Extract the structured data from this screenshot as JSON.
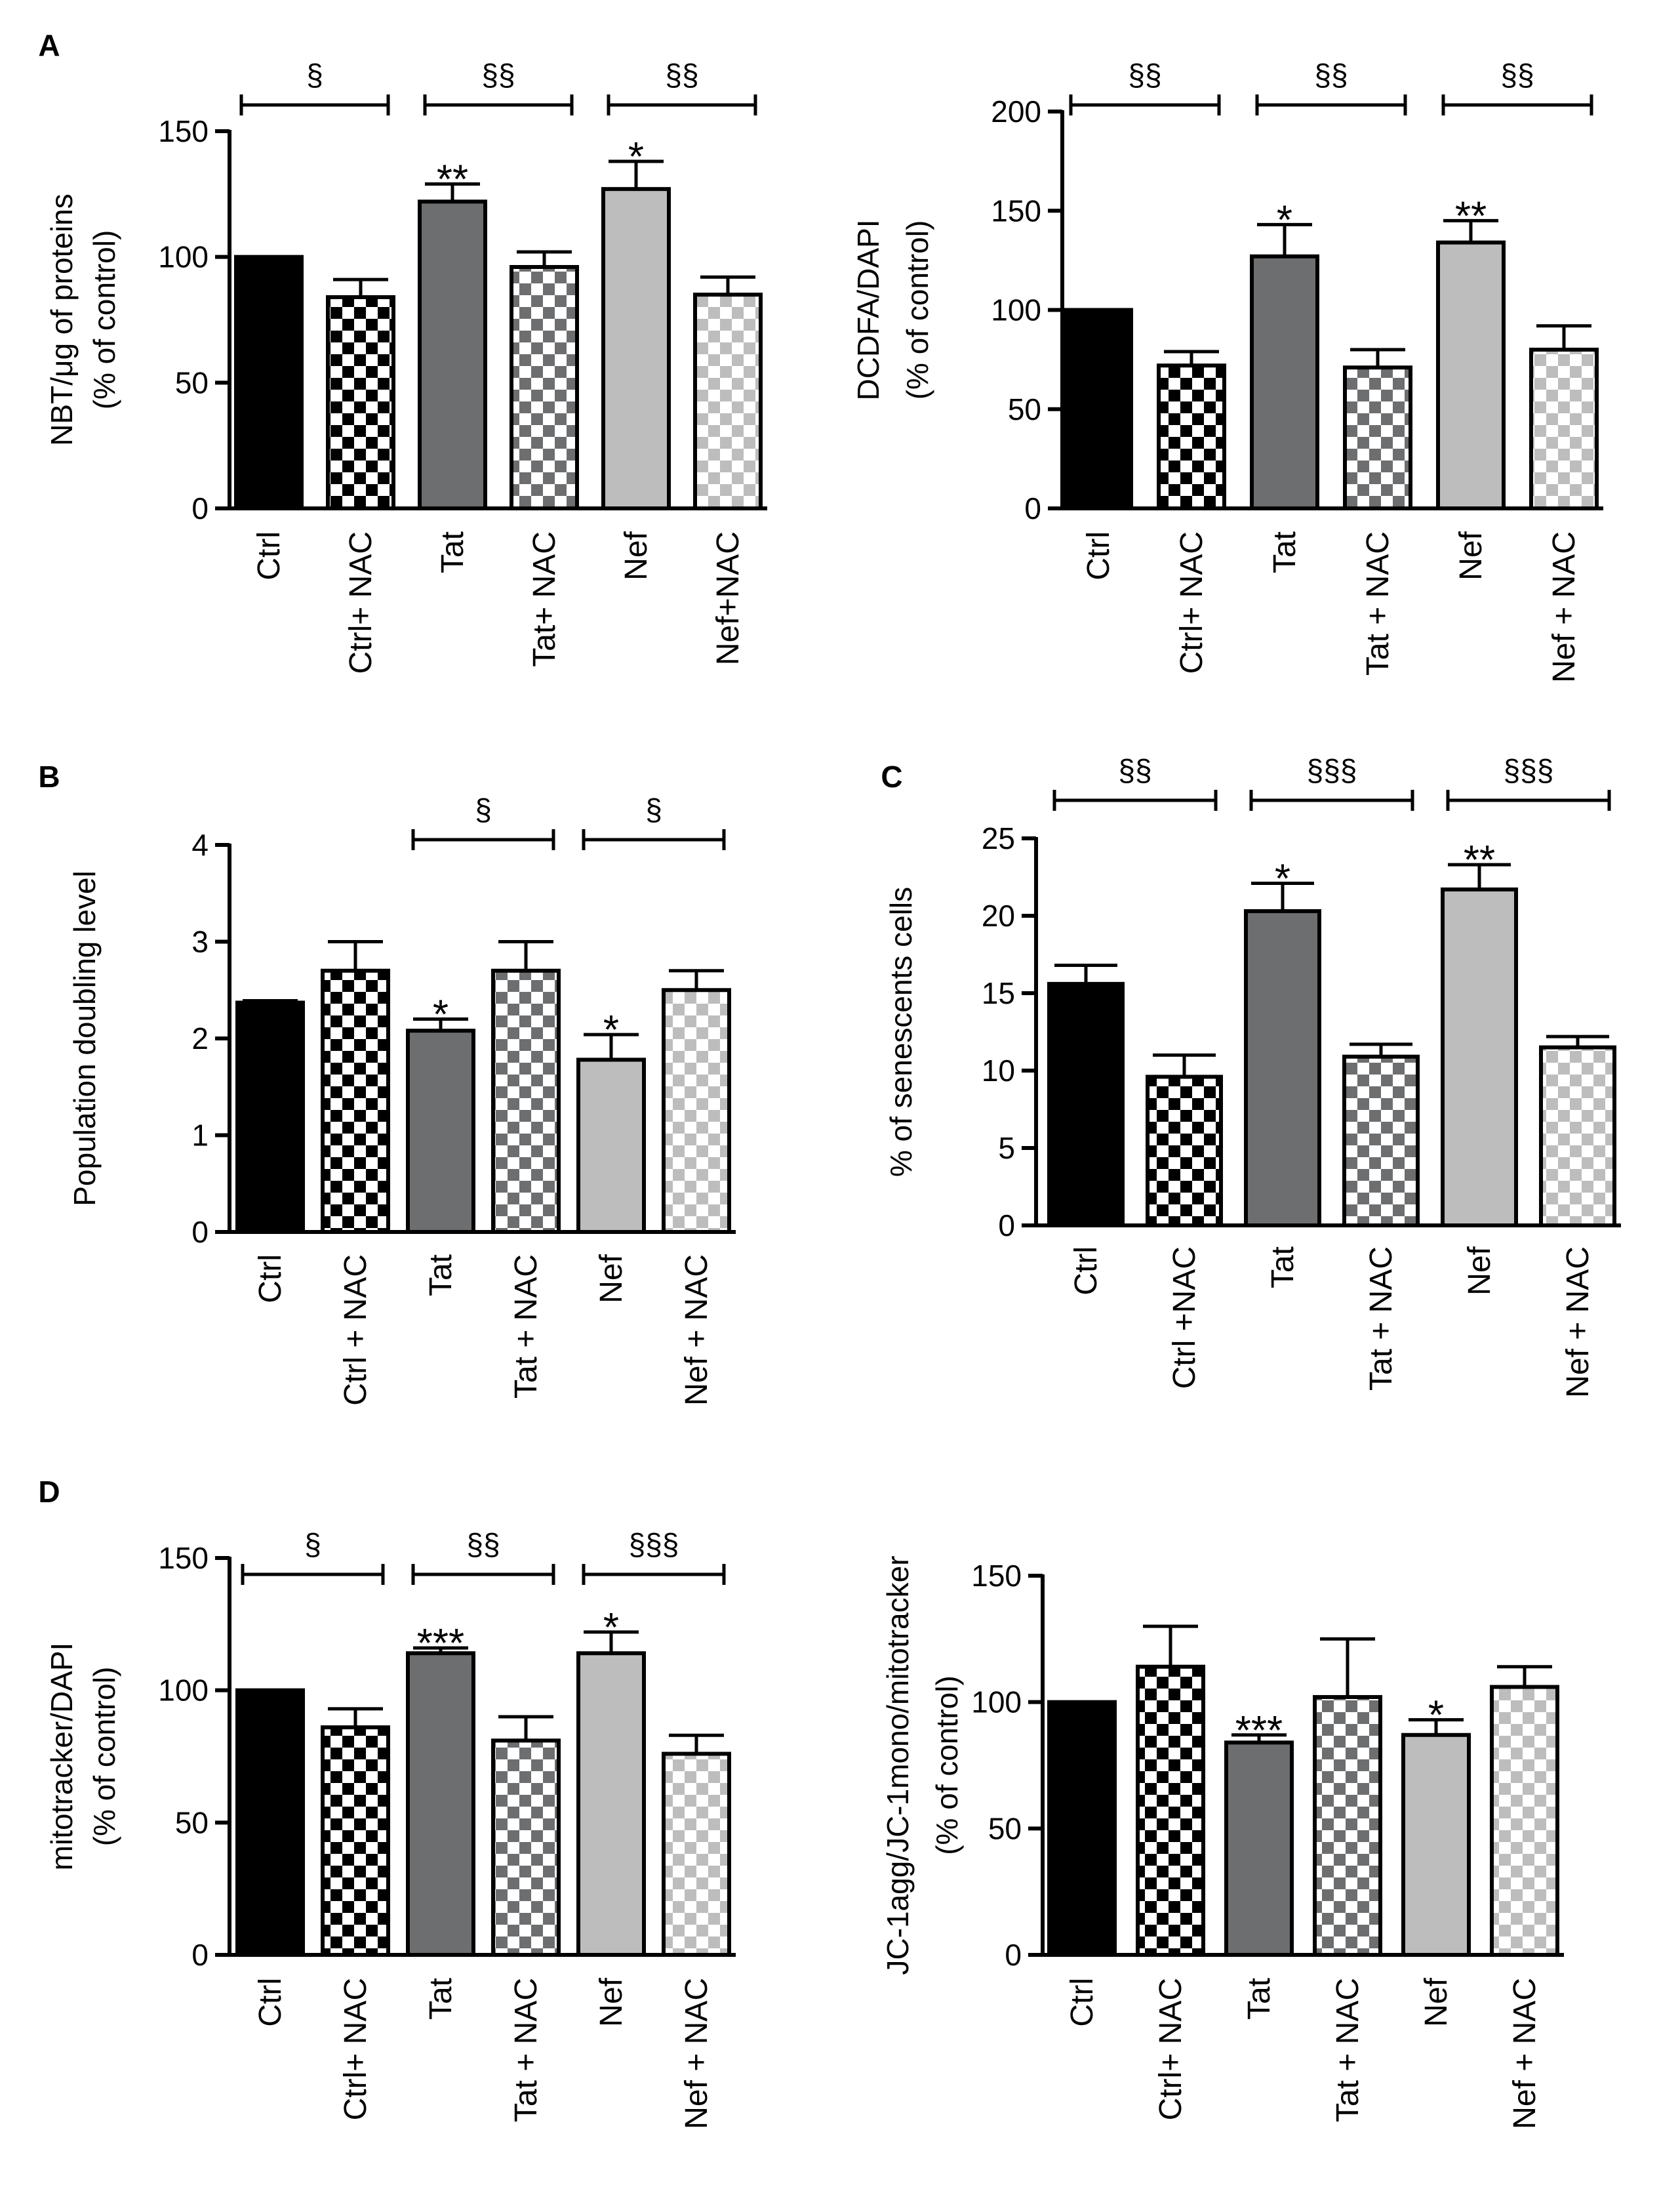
{
  "colors": {
    "ctrl": "#000000",
    "tat": "#6d6e70",
    "nef": "#bdbdbd",
    "pattern_light": "#ffffff",
    "axis": "#000000"
  },
  "panels": [
    {
      "letter": "A",
      "chart_data": {
        "type": "bar",
        "ylabel_lines": [
          "NBT/μg of proteins",
          "(% of control)"
        ],
        "ylim": [
          0,
          150
        ],
        "yticks": [
          0,
          50,
          100,
          150
        ],
        "categories": [
          "Ctrl",
          "Ctrl+ NAC",
          "Tat",
          "Tat+ NAC",
          "Nef",
          "Nef+NAC"
        ],
        "values": [
          100,
          84,
          122,
          96,
          127,
          85
        ],
        "errors": [
          0,
          7,
          7,
          6,
          11,
          7
        ],
        "stars": [
          "",
          "",
          "**",
          "",
          "*",
          ""
        ],
        "brackets": [
          {
            "from": 0,
            "to": 1,
            "label": "§"
          },
          {
            "from": 2,
            "to": 3,
            "label": "§§"
          },
          {
            "from": 4,
            "to": 5,
            "label": "§§"
          }
        ]
      }
    },
    {
      "letter": "",
      "chart_data": {
        "type": "bar",
        "ylabel_lines": [
          "DCDFA/DAPI",
          "(% of control)"
        ],
        "ylim": [
          0,
          200
        ],
        "yticks": [
          0,
          50,
          100,
          150,
          200
        ],
        "categories": [
          "Ctrl",
          "Ctrl+ NAC",
          "Tat",
          "Tat + NAC",
          "Nef",
          "Nef + NAC"
        ],
        "values": [
          100,
          72,
          127,
          71,
          134,
          80
        ],
        "errors": [
          0,
          7,
          16,
          9,
          11,
          12
        ],
        "stars": [
          "",
          "",
          "*",
          "",
          "**",
          ""
        ],
        "brackets": [
          {
            "from": 0,
            "to": 1,
            "label": "§§"
          },
          {
            "from": 2,
            "to": 3,
            "label": "§§"
          },
          {
            "from": 4,
            "to": 5,
            "label": "§§"
          }
        ]
      }
    },
    {
      "letter": "B",
      "chart_data": {
        "type": "bar",
        "ylabel_lines": [
          "Population doubling level"
        ],
        "ylim": [
          0,
          4
        ],
        "yticks": [
          0,
          1,
          2,
          3,
          4
        ],
        "categories": [
          "Ctrl",
          "Ctrl + NAC",
          "Tat",
          "Tat + NAC",
          "Nef",
          "Nef + NAC"
        ],
        "values": [
          2.37,
          2.7,
          2.08,
          2.7,
          1.78,
          2.5
        ],
        "errors": [
          0.02,
          0.3,
          0.12,
          0.3,
          0.26,
          0.2
        ],
        "stars": [
          "",
          "",
          "*",
          "",
          "*",
          ""
        ],
        "brackets": [
          {
            "from": 2,
            "to": 3,
            "label": "§"
          },
          {
            "from": 4,
            "to": 5,
            "label": "§"
          }
        ]
      }
    },
    {
      "letter": "C",
      "chart_data": {
        "type": "bar",
        "ylabel_lines": [
          "% of senescents cells"
        ],
        "ylim": [
          0,
          25
        ],
        "yticks": [
          0,
          5,
          10,
          15,
          20,
          25
        ],
        "categories": [
          "Ctrl",
          "Ctrl +NAC",
          "Tat",
          "Tat + NAC",
          "Nef",
          "Nef + NAC"
        ],
        "values": [
          15.6,
          9.6,
          20.3,
          10.9,
          21.7,
          11.5
        ],
        "errors": [
          1.2,
          1.4,
          1.8,
          0.8,
          1.6,
          0.7
        ],
        "stars": [
          "",
          "",
          "*",
          "",
          "**",
          ""
        ],
        "brackets": [
          {
            "from": 0,
            "to": 1,
            "label": "§§"
          },
          {
            "from": 2,
            "to": 3,
            "label": "§§§"
          },
          {
            "from": 4,
            "to": 5,
            "label": "§§§"
          }
        ]
      }
    },
    {
      "letter": "D",
      "chart_data": {
        "type": "bar",
        "ylabel_lines": [
          "mitotracker/DAPI",
          "(% of control)"
        ],
        "ylim": [
          0,
          150
        ],
        "yticks": [
          0,
          50,
          100,
          150
        ],
        "categories": [
          "Ctrl",
          "Ctrl+ NAC",
          "Tat",
          "Tat + NAC",
          "Nef",
          "Nef + NAC"
        ],
        "values": [
          100,
          86,
          114,
          81,
          114,
          76
        ],
        "errors": [
          0,
          7,
          2,
          9,
          8,
          7
        ],
        "stars": [
          "",
          "",
          "***",
          "",
          "*",
          ""
        ],
        "brackets": [
          {
            "from": 0,
            "to": 1,
            "label": "§"
          },
          {
            "from": 2,
            "to": 3,
            "label": "§§"
          },
          {
            "from": 4,
            "to": 5,
            "label": "§§§"
          }
        ]
      }
    },
    {
      "letter": "",
      "chart_data": {
        "type": "bar",
        "ylabel_lines": [
          "JC-1agg/JC-1mono/mitotracker",
          "(% of control)"
        ],
        "ylim": [
          0,
          150
        ],
        "yticks": [
          0,
          50,
          100,
          150
        ],
        "categories": [
          "Ctrl",
          "Ctrl+ NAC",
          "Tat",
          "Tat + NAC",
          "Nef",
          "Nef + NAC"
        ],
        "values": [
          100,
          114,
          84,
          102,
          87,
          106
        ],
        "errors": [
          0,
          16,
          3,
          23,
          6,
          8
        ],
        "stars": [
          "",
          "",
          "***",
          "",
          "*",
          ""
        ],
        "brackets": []
      }
    }
  ]
}
